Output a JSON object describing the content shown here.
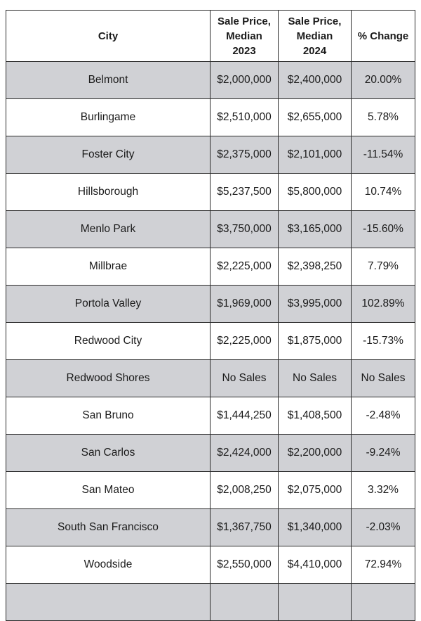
{
  "table": {
    "headers": {
      "city": "City",
      "price_2023": [
        "Sale Price,",
        "Median",
        "2023"
      ],
      "price_2024": [
        "Sale Price,",
        "Median",
        "2024"
      ],
      "change": "% Change"
    },
    "rows": [
      {
        "city": "Belmont",
        "price_2023": "$2,000,000",
        "price_2024": "$2,400,000",
        "change": "20.00%"
      },
      {
        "city": "Burlingame",
        "price_2023": "$2,510,000",
        "price_2024": "$2,655,000",
        "change": "5.78%"
      },
      {
        "city": "Foster City",
        "price_2023": "$2,375,000",
        "price_2024": "$2,101,000",
        "change": "-11.54%"
      },
      {
        "city": "Hillsborough",
        "price_2023": "$5,237,500",
        "price_2024": "$5,800,000",
        "change": "10.74%"
      },
      {
        "city": "Menlo Park",
        "price_2023": "$3,750,000",
        "price_2024": "$3,165,000",
        "change": "-15.60%"
      },
      {
        "city": "Millbrae",
        "price_2023": "$2,225,000",
        "price_2024": "$2,398,250",
        "change": "7.79%"
      },
      {
        "city": "Portola Valley",
        "price_2023": "$1,969,000",
        "price_2024": "$3,995,000",
        "change": "102.89%"
      },
      {
        "city": "Redwood City",
        "price_2023": "$2,225,000",
        "price_2024": "$1,875,000",
        "change": "-15.73%"
      },
      {
        "city": "Redwood Shores",
        "price_2023": "No Sales",
        "price_2024": "No Sales",
        "change": "No Sales"
      },
      {
        "city": "San Bruno",
        "price_2023": "$1,444,250",
        "price_2024": "$1,408,500",
        "change": "-2.48%"
      },
      {
        "city": "San Carlos",
        "price_2023": "$2,424,000",
        "price_2024": "$2,200,000",
        "change": "-9.24%"
      },
      {
        "city": "San Mateo",
        "price_2023": "$2,008,250",
        "price_2024": "$2,075,000",
        "change": "3.32%"
      },
      {
        "city": "South San Francisco",
        "price_2023": "$1,367,750",
        "price_2024": "$1,340,000",
        "change": "-2.03%"
      },
      {
        "city": "Woodside",
        "price_2023": "$2,550,000",
        "price_2024": "$4,410,000",
        "change": "72.94%"
      },
      {
        "city": "",
        "price_2023": "",
        "price_2024": "",
        "change": ""
      }
    ],
    "colors": {
      "shaded_row": "#d0d1d5",
      "plain_row": "#ffffff",
      "border": "#2b2b2b"
    }
  }
}
